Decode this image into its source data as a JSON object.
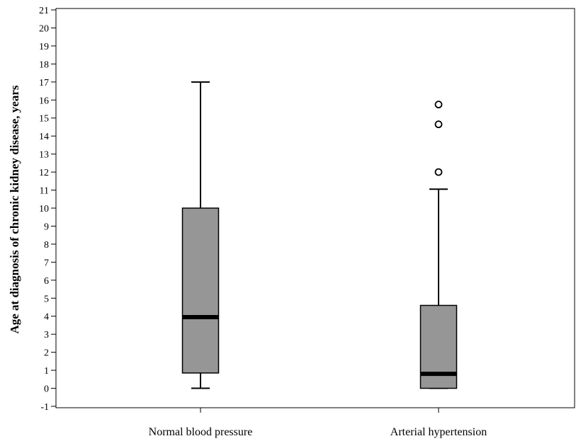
{
  "chart_data": {
    "type": "box",
    "title": "",
    "xlabel": "",
    "ylabel": "Age at diagnosis of chronic kidney disease, years",
    "ylim": [
      -1,
      21
    ],
    "yticks": [
      -1,
      0,
      1,
      2,
      3,
      4,
      5,
      6,
      7,
      8,
      9,
      10,
      11,
      12,
      13,
      14,
      15,
      16,
      17,
      18,
      19,
      20,
      21
    ],
    "grid": false,
    "legend": "none",
    "categories": [
      "Normal blood pressure",
      "Arterial hypertension"
    ],
    "boxes": [
      {
        "category": "Normal blood pressure",
        "whisker_low": 0,
        "q1": 0.85,
        "median": 3.95,
        "q3": 10,
        "whisker_high": 17,
        "outliers": []
      },
      {
        "category": "Arterial hypertension",
        "whisker_low": 0,
        "q1": 0,
        "median": 0.8,
        "q3": 4.6,
        "whisker_high": 11.05,
        "outliers": [
          12,
          14.65,
          15.75
        ]
      }
    ],
    "colors": {
      "box_fill": "#969696",
      "stroke": "#000000"
    }
  }
}
